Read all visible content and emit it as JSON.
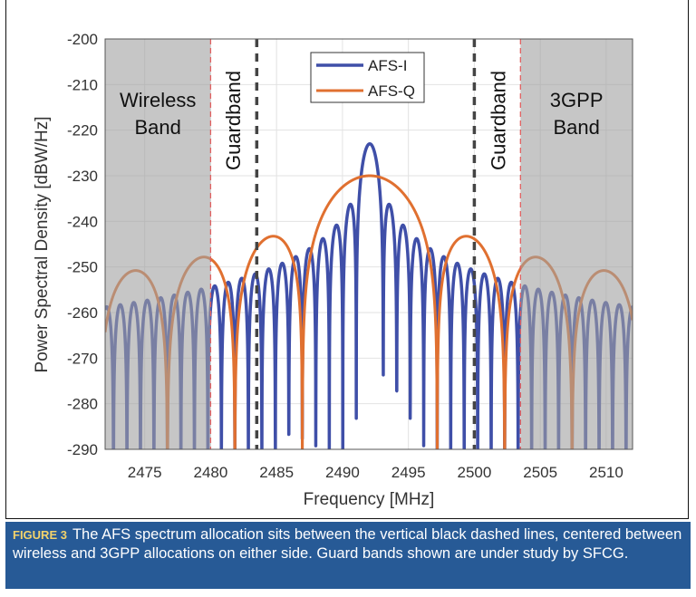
{
  "chart_data": {
    "type": "line",
    "xlabel": "Frequency [MHz]",
    "ylabel": "Power Spectral Density [dBW/Hz]",
    "xlim": [
      2472,
      2512
    ],
    "ylim": [
      -290,
      -200
    ],
    "xticks": [
      2475,
      2480,
      2485,
      2490,
      2495,
      2500,
      2505,
      2510
    ],
    "yticks": [
      -200,
      -210,
      -220,
      -230,
      -240,
      -250,
      -260,
      -270,
      -280,
      -290
    ],
    "grid": true,
    "legend_placement": "top-center",
    "series": [
      {
        "name": "AFS-I",
        "color": "#3f4fa8",
        "shape": "sinc-squared",
        "center_mhz": 2492.07,
        "peak_dbw_hz": -223,
        "null_spacing_mhz": 1.023
      },
      {
        "name": "AFS-Q",
        "color": "#e07030",
        "shape": "sinc-squared",
        "center_mhz": 2492.07,
        "peak_dbw_hz": -230,
        "null_spacing_mhz": 5.115
      }
    ],
    "shaded_regions": [
      {
        "label_lines": [
          "Wireless",
          "Band"
        ],
        "x": [
          2472,
          2480
        ],
        "color": "#c6c6c6"
      },
      {
        "label_lines": [
          "3GPP",
          "Band"
        ],
        "x": [
          2503.5,
          2512
        ],
        "color": "#c6c6c6"
      }
    ],
    "vertical_lines": [
      {
        "x": 2480,
        "style": "dashed",
        "color": "#e06060"
      },
      {
        "x": 2483.5,
        "style": "dashed",
        "color": "#444444"
      },
      {
        "x": 2500,
        "style": "dashed",
        "color": "#444444"
      },
      {
        "x": 2503.5,
        "style": "dashed",
        "color": "#e06060"
      }
    ],
    "annotations": [
      {
        "text": "Guardband",
        "x": 2481.7,
        "rotated": true
      },
      {
        "text": "Guardband",
        "x": 2501.8,
        "rotated": true
      }
    ]
  },
  "caption": {
    "label": "FIGURE 3",
    "text": "The AFS spectrum allocation sits between the vertical black dashed lines, centered between wireless and 3GPP allocations on either side. Guard bands shown are under study by SFCG."
  }
}
